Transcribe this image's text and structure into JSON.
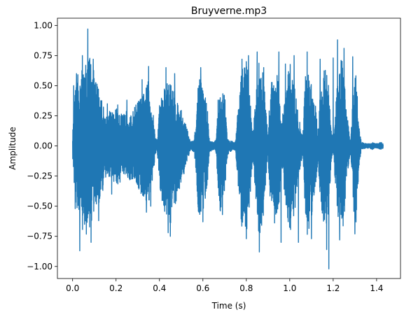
{
  "chart_data": {
    "type": "line",
    "title": "Bruyverne.mp3",
    "xlabel": "Time (s)",
    "ylabel": "Amplitude",
    "xlim": [
      -0.07,
      1.51
    ],
    "ylim": [
      -1.1,
      1.06
    ],
    "xticks": [
      0.0,
      0.2,
      0.4,
      0.6,
      0.8,
      1.0,
      1.2,
      1.4
    ],
    "xtick_labels": [
      "0.0",
      "0.2",
      "0.4",
      "0.6",
      "0.8",
      "1.0",
      "1.2",
      "1.4"
    ],
    "yticks": [
      -1.0,
      -0.75,
      -0.5,
      -0.25,
      0.0,
      0.25,
      0.5,
      0.75,
      1.0
    ],
    "ytick_labels": [
      "−1.00",
      "−0.75",
      "−0.50",
      "−0.25",
      "0.00",
      "0.25",
      "0.50",
      "0.75",
      "1.00"
    ],
    "grid": false,
    "series": [
      {
        "color": "#1f77b4",
        "duration": 1.43,
        "envelope": {
          "t": [
            0.0,
            0.01,
            0.03,
            0.06,
            0.08,
            0.1,
            0.13,
            0.15,
            0.17,
            0.19,
            0.21,
            0.23,
            0.25,
            0.27,
            0.29,
            0.31,
            0.33,
            0.35,
            0.37,
            0.38,
            0.39,
            0.4,
            0.42,
            0.45,
            0.48,
            0.5,
            0.52,
            0.54,
            0.55,
            0.56,
            0.57,
            0.58,
            0.6,
            0.62,
            0.63,
            0.65,
            0.66,
            0.67,
            0.68,
            0.7,
            0.71,
            0.72,
            0.73,
            0.74,
            0.75,
            0.76,
            0.78,
            0.8,
            0.81,
            0.82,
            0.83,
            0.84,
            0.86,
            0.88,
            0.89,
            0.9,
            0.91,
            0.93,
            0.95,
            0.96,
            0.98,
            1.0,
            1.02,
            1.04,
            1.06,
            1.07,
            1.08,
            1.1,
            1.12,
            1.13,
            1.14,
            1.16,
            1.18,
            1.19,
            1.2,
            1.22,
            1.24,
            1.25,
            1.26,
            1.28,
            1.3,
            1.31,
            1.32,
            1.33,
            1.35,
            1.37,
            1.38,
            1.4,
            1.42,
            1.43
          ],
          "upper": [
            0.1,
            0.45,
            0.65,
            0.7,
            0.78,
            0.6,
            0.45,
            0.25,
            0.3,
            0.28,
            0.35,
            0.25,
            0.3,
            0.25,
            0.35,
            0.4,
            0.45,
            0.55,
            0.3,
            0.08,
            0.05,
            0.35,
            0.5,
            0.55,
            0.4,
            0.3,
            0.2,
            0.05,
            0.04,
            0.05,
            0.25,
            0.6,
            0.5,
            0.35,
            0.05,
            0.03,
            0.05,
            0.35,
            0.45,
            0.45,
            0.15,
            0.04,
            0.05,
            0.03,
            0.04,
            0.3,
            0.65,
            0.7,
            0.6,
            0.35,
            0.08,
            0.35,
            0.75,
            0.6,
            0.3,
            0.08,
            0.5,
            0.65,
            0.55,
            0.15,
            0.45,
            0.7,
            0.55,
            0.25,
            0.08,
            0.55,
            0.7,
            0.55,
            0.35,
            0.1,
            0.45,
            0.7,
            0.5,
            0.15,
            0.05,
            0.55,
            0.75,
            0.6,
            0.3,
            0.05,
            0.7,
            0.5,
            0.15,
            0.03,
            0.02,
            0.02,
            0.03,
            0.02,
            0.03,
            0.02
          ],
          "lower": [
            -0.1,
            -0.45,
            -0.65,
            -0.75,
            -0.7,
            -0.55,
            -0.45,
            -0.3,
            -0.25,
            -0.3,
            -0.35,
            -0.25,
            -0.3,
            -0.28,
            -0.3,
            -0.4,
            -0.45,
            -0.5,
            -0.3,
            -0.08,
            -0.05,
            -0.35,
            -0.55,
            -0.65,
            -0.45,
            -0.3,
            -0.2,
            -0.05,
            -0.04,
            -0.05,
            -0.25,
            -0.6,
            -0.55,
            -0.35,
            -0.05,
            -0.03,
            -0.05,
            -0.35,
            -0.55,
            -0.45,
            -0.15,
            -0.04,
            -0.05,
            -0.03,
            -0.04,
            -0.3,
            -0.7,
            -0.75,
            -0.6,
            -0.35,
            -0.08,
            -0.35,
            -0.8,
            -0.65,
            -0.3,
            -0.08,
            -0.5,
            -0.7,
            -0.55,
            -0.15,
            -0.45,
            -0.75,
            -0.6,
            -0.25,
            -0.08,
            -0.55,
            -0.75,
            -0.6,
            -0.35,
            -0.1,
            -0.45,
            -0.75,
            -0.55,
            -0.15,
            -0.05,
            -0.6,
            -0.8,
            -0.65,
            -0.3,
            -0.05,
            -0.72,
            -0.55,
            -0.15,
            -0.03,
            -0.02,
            -0.02,
            -0.03,
            -0.02,
            -0.03,
            -0.02
          ]
        },
        "peaks": [
          {
            "t": 0.005,
            "y": 0.5
          },
          {
            "t": 0.012,
            "y": -0.52
          },
          {
            "t": 0.018,
            "y": 0.6
          },
          {
            "t": 0.033,
            "y": -0.87
          },
          {
            "t": 0.045,
            "y": 0.75
          },
          {
            "t": 0.055,
            "y": -0.65
          },
          {
            "t": 0.07,
            "y": 0.97
          },
          {
            "t": 0.085,
            "y": -0.8
          },
          {
            "t": 0.095,
            "y": 0.72
          },
          {
            "t": 0.12,
            "y": -0.62
          },
          {
            "t": 0.16,
            "y": 0.35
          },
          {
            "t": 0.18,
            "y": -0.4
          },
          {
            "t": 0.25,
            "y": 0.38
          },
          {
            "t": 0.32,
            "y": 0.55
          },
          {
            "t": 0.34,
            "y": -0.55
          },
          {
            "t": 0.35,
            "y": 0.66
          },
          {
            "t": 0.36,
            "y": -0.5
          },
          {
            "t": 0.43,
            "y": 0.65
          },
          {
            "t": 0.44,
            "y": -0.72
          },
          {
            "t": 0.45,
            "y": -0.75
          },
          {
            "t": 0.47,
            "y": 0.6
          },
          {
            "t": 0.59,
            "y": 0.65
          },
          {
            "t": 0.6,
            "y": -0.63
          },
          {
            "t": 0.67,
            "y": 0.38
          },
          {
            "t": 0.69,
            "y": -0.57
          },
          {
            "t": 0.78,
            "y": 0.72
          },
          {
            "t": 0.8,
            "y": -0.77
          },
          {
            "t": 0.81,
            "y": 0.75
          },
          {
            "t": 0.85,
            "y": 0.78
          },
          {
            "t": 0.86,
            "y": -0.88
          },
          {
            "t": 0.88,
            "y": 0.65
          },
          {
            "t": 0.95,
            "y": 0.78
          },
          {
            "t": 0.96,
            "y": -0.8
          },
          {
            "t": 0.98,
            "y": 0.68
          },
          {
            "t": 1.02,
            "y": 0.75
          },
          {
            "t": 1.04,
            "y": -0.8
          },
          {
            "t": 1.08,
            "y": 0.78
          },
          {
            "t": 1.1,
            "y": -0.77
          },
          {
            "t": 1.14,
            "y": 0.72
          },
          {
            "t": 1.17,
            "y": -0.86
          },
          {
            "t": 1.18,
            "y": -1.02
          },
          {
            "t": 1.2,
            "y": 0.73
          },
          {
            "t": 1.22,
            "y": 0.88
          },
          {
            "t": 1.23,
            "y": -0.78
          },
          {
            "t": 1.24,
            "y": -0.6
          },
          {
            "t": 1.25,
            "y": 0.81
          },
          {
            "t": 1.29,
            "y": 0.74
          },
          {
            "t": 1.3,
            "y": -0.73
          }
        ]
      }
    ]
  }
}
